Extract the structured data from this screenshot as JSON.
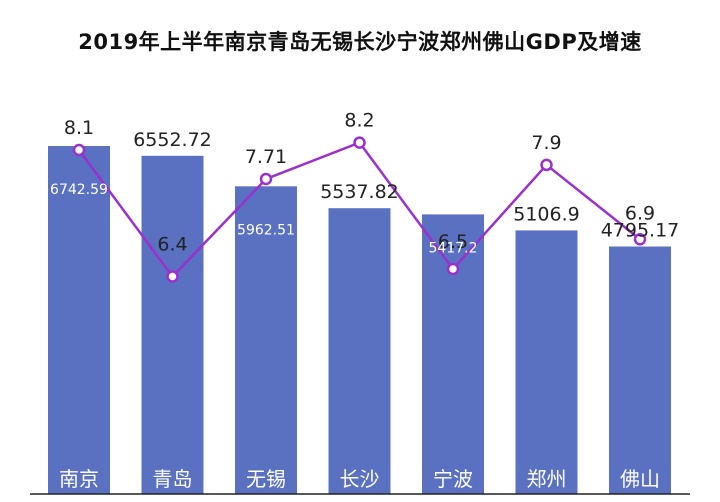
{
  "chart_data": {
    "type": "bar",
    "title": "2019年上半年南京青岛无锡长沙宁波郑州佛山GDP及增速",
    "categories": [
      "南京",
      "青岛",
      "无锡",
      "长沙",
      "宁波",
      "郑州",
      "佛山"
    ],
    "series": [
      {
        "kind": "bar",
        "values": [
          6742.59,
          6552.72,
          5962.51,
          5537.82,
          5417.2,
          5106.9,
          4795.17
        ],
        "color": "#5a70c0"
      },
      {
        "kind": "line",
        "values": [
          8.1,
          6.4,
          7.71,
          8.2,
          6.5,
          7.9,
          6.9
        ],
        "color": "#9b2fcf"
      }
    ],
    "bar_label_placement": [
      "inside",
      "above",
      "inside",
      "above",
      "inside",
      "above",
      "above"
    ],
    "grid": false,
    "legend": "none"
  }
}
